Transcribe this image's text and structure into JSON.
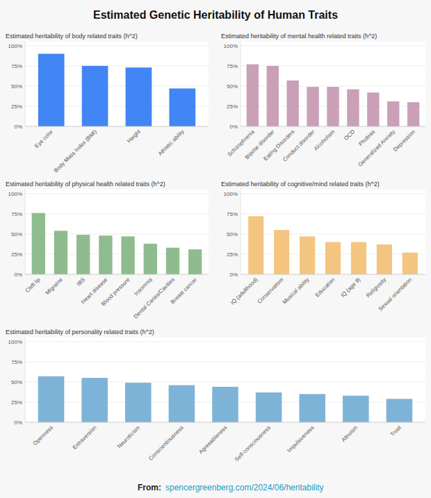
{
  "title": "Estimated Genetic Heritability of Human Traits",
  "annotations": [
    "From:  ",
    "spencergreenberg.com/2024/06/heritability"
  ],
  "chart_data": [
    {
      "type": "bar",
      "title": "Estimated heritability of body related traits (h^2)",
      "categories": [
        "Eye color",
        "Body Mass Index (BMI)",
        "Height",
        "Athletic ability"
      ],
      "values": [
        90,
        75,
        73,
        47
      ],
      "color": "#4285F4",
      "ylim": [
        0,
        105
      ],
      "yticks": [
        {
          "value": 0,
          "label": "0%"
        },
        {
          "value": 25,
          "label": "25%"
        },
        {
          "value": 50,
          "label": "50%"
        },
        {
          "value": 75,
          "label": "75%"
        },
        {
          "value": 100,
          "label": "100%"
        }
      ],
      "grid": true
    },
    {
      "type": "bar",
      "title": "Estimated heritability of mental health related traits (h^2)",
      "categories": [
        "Schizophrenia",
        "Bipolar disorder",
        "Eating Disorders",
        "Conduct disorder",
        "Alcoholism",
        "OCD",
        "Phobias",
        "Generalized Anxiety",
        "Depression"
      ],
      "values": [
        77,
        75,
        57,
        49,
        49,
        46,
        42,
        31,
        30
      ],
      "color": "#C9A0B8",
      "ylim": [
        0,
        105
      ],
      "yticks": [
        {
          "value": 0,
          "label": "0%"
        },
        {
          "value": 25,
          "label": "25%"
        },
        {
          "value": 50,
          "label": "50%"
        },
        {
          "value": 75,
          "label": "75%"
        },
        {
          "value": 100,
          "label": "100%"
        }
      ],
      "grid": true
    },
    {
      "type": "bar",
      "title": "Estimated heritability of physical health related traits (h^2)",
      "categories": [
        "Cleft lip",
        "Migraine",
        "IBS",
        "Heart disease",
        "Blood pressure",
        "Insomnia",
        "Dental Caries/Cavities",
        "Breast cancer"
      ],
      "values": [
        76,
        54,
        49,
        48,
        47,
        38,
        33,
        31
      ],
      "color": "#8FBC8F",
      "ylim": [
        0,
        105
      ],
      "yticks": [
        {
          "value": 0,
          "label": "0%"
        },
        {
          "value": 25,
          "label": "25%"
        },
        {
          "value": 50,
          "label": "50%"
        },
        {
          "value": 75,
          "label": "75%"
        },
        {
          "value": 100,
          "label": "100%"
        }
      ],
      "grid": true
    },
    {
      "type": "bar",
      "title": "Estimated heritability of cognitive/mind related traits (h^2)",
      "categories": [
        "IQ (adulthood)",
        "Conservatism",
        "Musical ability",
        "Education",
        "IQ (age 9)",
        "Religiosity",
        "Sexual orientation"
      ],
      "values": [
        72,
        55,
        47,
        40,
        40,
        37,
        27
      ],
      "color": "#F4C580",
      "ylim": [
        0,
        105
      ],
      "yticks": [
        {
          "value": 0,
          "label": "0%"
        },
        {
          "value": 25,
          "label": "25%"
        },
        {
          "value": 50,
          "label": "50%"
        },
        {
          "value": 75,
          "label": "75%"
        },
        {
          "value": 100,
          "label": "100%"
        }
      ],
      "grid": true
    },
    {
      "type": "bar",
      "title": "Estimated heritability of personality related traits (h^2)",
      "categories": [
        "Openness",
        "Extraversion",
        "Neuroticism",
        "Conscientiousness",
        "Agreeableness",
        "Self-consciousness",
        "Impulsiveness",
        "Altruism",
        "Trust"
      ],
      "values": [
        57,
        55,
        49,
        46,
        44,
        37,
        35,
        33,
        29
      ],
      "color": "#7EB3D8",
      "ylim": [
        0,
        105
      ],
      "yticks": [
        {
          "value": 0,
          "label": "0%"
        },
        {
          "value": 25,
          "label": "25%"
        },
        {
          "value": 50,
          "label": "50%"
        },
        {
          "value": 75,
          "label": "75%"
        },
        {
          "value": 100,
          "label": "100%"
        }
      ],
      "grid": true
    }
  ]
}
